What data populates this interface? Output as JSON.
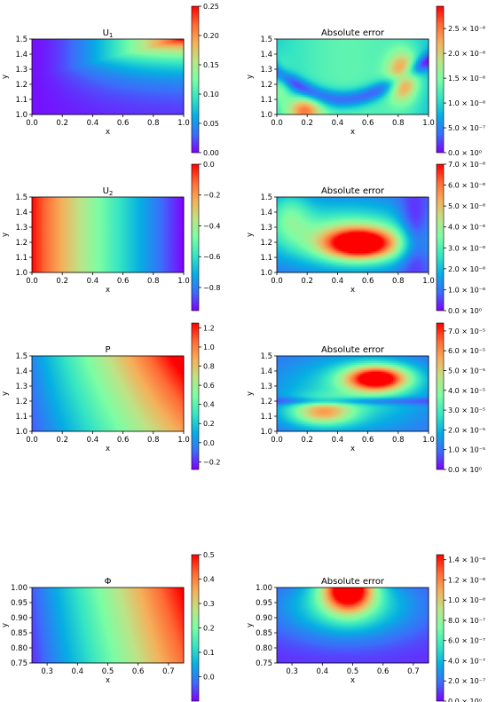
{
  "colormap_stops": [
    "#8000ff",
    "#3c6dfa",
    "#06aee3",
    "#35e5c3",
    "#7bfda4",
    "#bce487",
    "#f5b05b",
    "#ff6a35",
    "#ff0000"
  ],
  "chart_data": [
    {
      "type": "heatmap",
      "field": "u1",
      "title": "U",
      "title_sub": "1",
      "xlabel": "x",
      "ylabel": "y",
      "xlim": [
        0.0,
        1.0
      ],
      "ylim": [
        1.0,
        1.5
      ],
      "xticks": [
        "0.0",
        "0.2",
        "0.4",
        "0.6",
        "0.8",
        "1.0"
      ],
      "yticks": [
        "1.0",
        "1.1",
        "1.2",
        "1.3",
        "1.4",
        "1.5"
      ],
      "clim": [
        0,
        0.25
      ],
      "colorbar_ticks": [
        "0.00",
        "0.05",
        "0.10",
        "0.15",
        "0.20",
        "0.25"
      ]
    },
    {
      "type": "heatmap",
      "field": "err1",
      "title": "Absolute error",
      "xlabel": "x",
      "ylabel": "y",
      "xlim": [
        0.0,
        1.0
      ],
      "ylim": [
        1.0,
        1.5
      ],
      "xticks": [
        "0.0",
        "0.2",
        "0.4",
        "0.6",
        "0.8",
        "1.0"
      ],
      "yticks": [
        "1.0",
        "1.1",
        "1.2",
        "1.3",
        "1.4",
        "1.5"
      ],
      "clim": [
        0,
        2.95e-06
      ],
      "colorbar_ticks": [
        "0.0 × 10⁰",
        "5.0 × 10⁻⁷",
        "1.0 × 10⁻⁶",
        "1.5 × 10⁻⁶",
        "2.0 × 10⁻⁶",
        "2.5 × 10⁻⁶"
      ]
    },
    {
      "type": "heatmap",
      "field": "u2",
      "title": "U",
      "title_sub": "2",
      "xlabel": "x",
      "ylabel": "y",
      "xlim": [
        0.0,
        1.0
      ],
      "ylim": [
        1.0,
        1.5
      ],
      "xticks": [
        "0.0",
        "0.2",
        "0.4",
        "0.6",
        "0.8",
        "1.0"
      ],
      "yticks": [
        "1.0",
        "1.1",
        "1.2",
        "1.3",
        "1.4",
        "1.5"
      ],
      "clim": [
        -0.95,
        0.0
      ],
      "colorbar_ticks": [
        "−0.8",
        "−0.6",
        "−0.4",
        "−0.2",
        "0.0"
      ]
    },
    {
      "type": "heatmap",
      "field": "err2",
      "title": "Absolute error",
      "xlabel": "x",
      "ylabel": "y",
      "xlim": [
        0.0,
        1.0
      ],
      "ylim": [
        1.0,
        1.5
      ],
      "xticks": [
        "0.0",
        "0.2",
        "0.4",
        "0.6",
        "0.8",
        "1.0"
      ],
      "yticks": [
        "1.0",
        "1.1",
        "1.2",
        "1.3",
        "1.4",
        "1.5"
      ],
      "clim": [
        0,
        7e-06
      ],
      "colorbar_ticks": [
        "0.0 × 10⁰",
        "1.0 × 10⁻⁶",
        "2.0 × 10⁻⁶",
        "3.0 × 10⁻⁶",
        "4.0 × 10⁻⁶",
        "5.0 × 10⁻⁶",
        "6.0 × 10⁻⁶",
        "7.0 × 10⁻⁶"
      ]
    },
    {
      "type": "heatmap",
      "field": "p",
      "title": "P",
      "xlabel": "x",
      "ylabel": "y",
      "xlim": [
        0.0,
        1.0
      ],
      "ylim": [
        1.0,
        1.5
      ],
      "xticks": [
        "0.0",
        "0.2",
        "0.4",
        "0.6",
        "0.8",
        "1.0"
      ],
      "yticks": [
        "1.0",
        "1.1",
        "1.2",
        "1.3",
        "1.4",
        "1.5"
      ],
      "clim": [
        -0.28,
        1.25
      ],
      "colorbar_ticks": [
        "−0.2",
        "0.0",
        "0.2",
        "0.4",
        "0.6",
        "0.8",
        "1.0",
        "1.2"
      ]
    },
    {
      "type": "heatmap",
      "field": "err3",
      "title": "Absolute error",
      "xlabel": "x",
      "ylabel": "y",
      "xlim": [
        0.0,
        1.0
      ],
      "ylim": [
        1.0,
        1.5
      ],
      "xticks": [
        "0.0",
        "0.2",
        "0.4",
        "0.6",
        "0.8",
        "1.0"
      ],
      "yticks": [
        "1.0",
        "1.1",
        "1.2",
        "1.3",
        "1.4",
        "1.5"
      ],
      "clim": [
        0,
        7.4e-05
      ],
      "colorbar_ticks": [
        "0.0 × 10⁰",
        "1.0 × 10⁻⁵",
        "2.0 × 10⁻⁵",
        "3.0 × 10⁻⁵",
        "4.0 × 10⁻⁵",
        "5.0 × 10⁻⁵",
        "6.0 × 10⁻⁵",
        "7.0 × 10⁻⁵"
      ]
    },
    {
      "type": "heatmap",
      "field": "phi",
      "title": "Φ",
      "xlabel": "x",
      "ylabel": "y",
      "xlim": [
        0.25,
        0.75
      ],
      "ylim": [
        0.75,
        1.0
      ],
      "xticks": [
        "0.3",
        "0.4",
        "0.5",
        "0.6",
        "0.7"
      ],
      "yticks": [
        "0.75",
        "0.80",
        "0.85",
        "0.90",
        "0.95",
        "1.00"
      ],
      "clim": [
        -0.1,
        0.5
      ],
      "colorbar_ticks": [
        "0.0",
        "0.1",
        "0.2",
        "0.3",
        "0.4",
        "0.5"
      ]
    },
    {
      "type": "heatmap",
      "field": "err4",
      "title": "Absolute error",
      "xlabel": "x",
      "ylabel": "y",
      "xlim": [
        0.25,
        0.75
      ],
      "ylim": [
        0.75,
        1.0
      ],
      "xticks": [
        "0.3",
        "0.4",
        "0.5",
        "0.6",
        "0.7"
      ],
      "yticks": [
        "0.75",
        "0.80",
        "0.85",
        "0.90",
        "0.95",
        "1.00"
      ],
      "clim": [
        0,
        1.45e-06
      ],
      "colorbar_ticks": [
        "0.0 × 10⁰",
        "2.0 × 10⁻⁷",
        "4.0 × 10⁻⁷",
        "6.0 × 10⁻⁷",
        "8.0 × 10⁻⁷",
        "1.0 × 10⁻⁶",
        "1.2 × 10⁻⁶",
        "1.4 × 10⁻⁶"
      ]
    }
  ]
}
